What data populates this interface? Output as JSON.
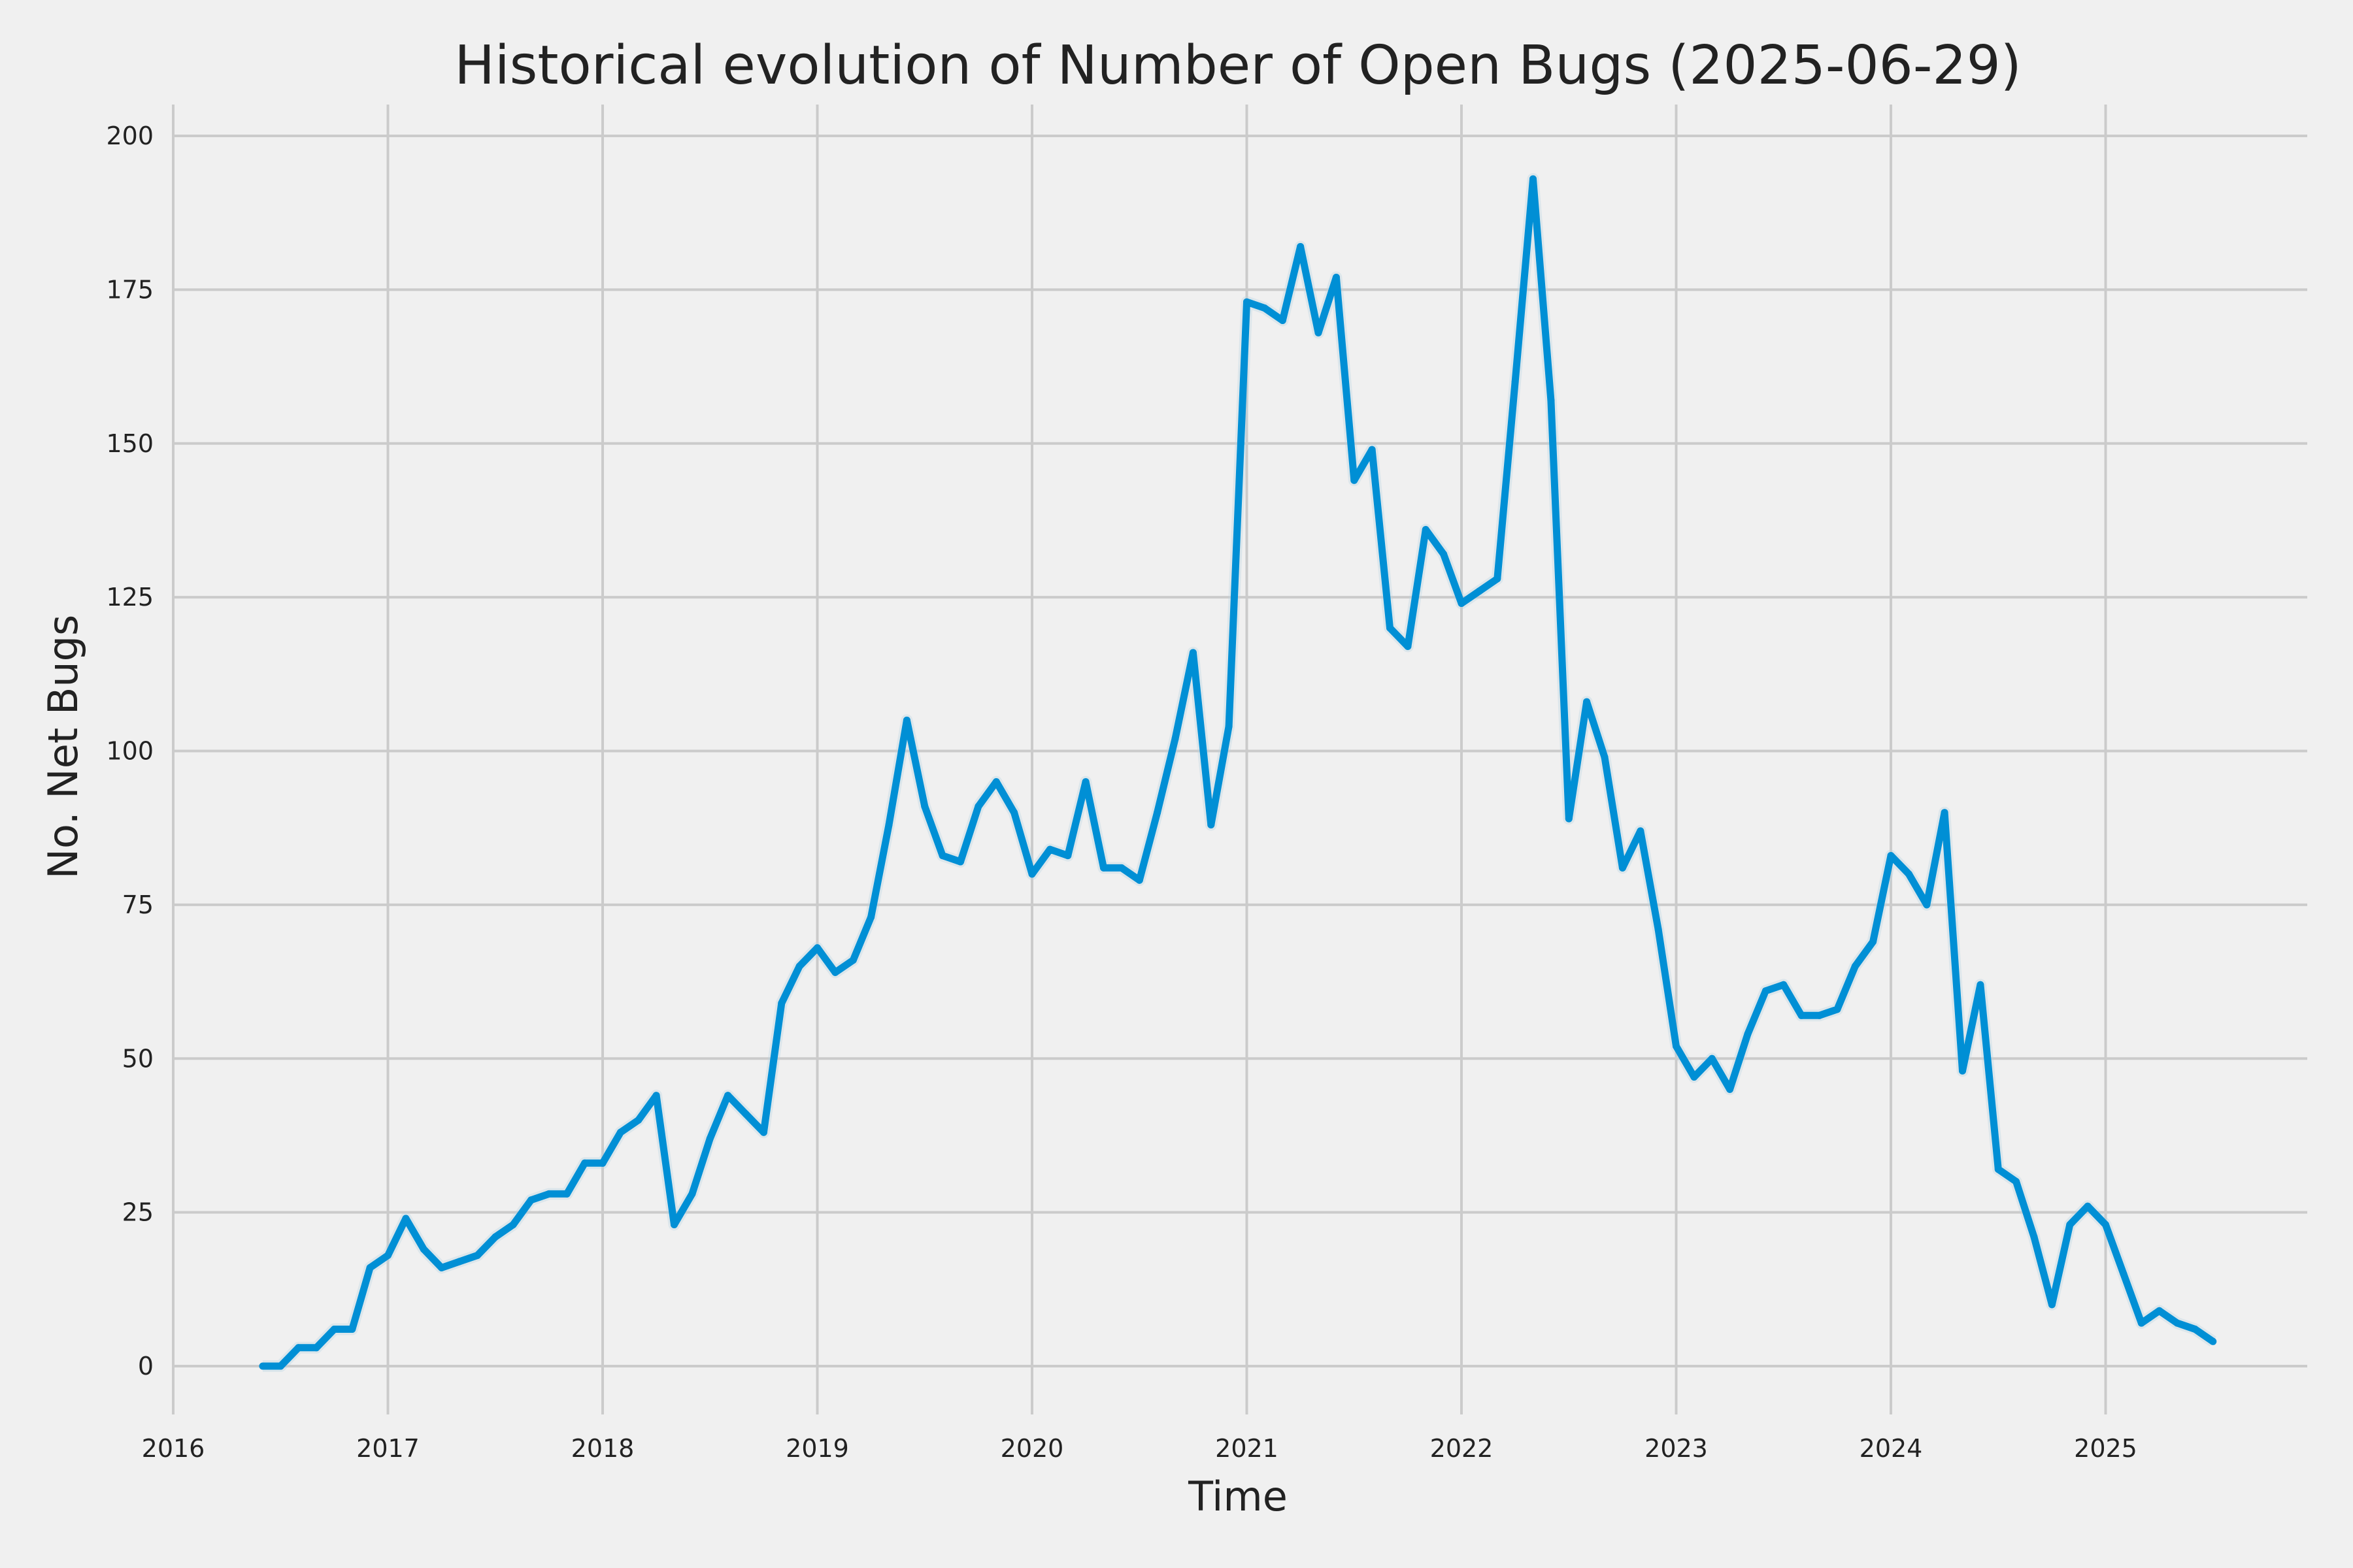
{
  "chart_data": {
    "type": "line",
    "title": "Historical evolution of Number of Open Bugs (2025-06-29)",
    "xlabel": "Time",
    "ylabel": "No. Net Bugs",
    "xlim": [
      "2016-01",
      "2025-12"
    ],
    "ylim": [
      -8,
      205
    ],
    "grid": true,
    "colors": {
      "background": "#f0f0f0",
      "grid": "#cbcbcb",
      "line": "#008fd5",
      "band": "#b8d4e3",
      "text": "#222222"
    },
    "x_ticks": [
      "2016",
      "2017",
      "2018",
      "2019",
      "2020",
      "2021",
      "2022",
      "2023",
      "2024",
      "2025"
    ],
    "y_ticks": [
      0,
      25,
      50,
      75,
      100,
      125,
      150,
      175,
      200
    ],
    "series": [
      {
        "x": [
          "2016-06",
          "2016-07",
          "2016-08",
          "2016-09",
          "2016-10",
          "2016-11",
          "2016-12",
          "2017-01",
          "2017-02",
          "2017-03",
          "2017-04",
          "2017-05",
          "2017-06",
          "2017-07",
          "2017-08",
          "2017-09",
          "2017-10",
          "2017-11",
          "2017-12",
          "2018-01",
          "2018-02",
          "2018-03",
          "2018-04",
          "2018-05",
          "2018-06",
          "2018-07",
          "2018-08",
          "2018-09",
          "2018-10",
          "2018-11",
          "2018-12",
          "2019-01",
          "2019-02",
          "2019-03",
          "2019-04",
          "2019-05",
          "2019-06",
          "2019-07",
          "2019-08",
          "2019-09",
          "2019-10",
          "2019-11",
          "2019-12",
          "2020-01",
          "2020-02",
          "2020-03",
          "2020-04",
          "2020-05",
          "2020-06",
          "2020-07",
          "2020-08",
          "2020-09",
          "2020-10",
          "2020-11",
          "2020-12",
          "2021-01",
          "2021-02",
          "2021-03",
          "2021-04",
          "2021-05",
          "2021-06",
          "2021-07",
          "2021-08",
          "2021-09",
          "2021-10",
          "2021-11",
          "2021-12",
          "2022-01",
          "2022-02",
          "2022-03",
          "2022-04",
          "2022-05",
          "2022-06",
          "2022-07",
          "2022-08",
          "2022-09",
          "2022-10",
          "2022-11",
          "2022-12",
          "2023-01",
          "2023-02",
          "2023-03",
          "2023-04",
          "2023-05",
          "2023-06",
          "2023-07",
          "2023-08",
          "2023-09",
          "2023-10",
          "2023-11",
          "2023-12",
          "2024-01",
          "2024-02",
          "2024-03",
          "2024-04",
          "2024-05",
          "2024-06",
          "2024-07",
          "2024-08",
          "2024-09",
          "2024-10",
          "2024-11",
          "2024-12",
          "2025-01",
          "2025-02",
          "2025-03",
          "2025-04",
          "2025-05",
          "2025-06",
          "2025-07"
        ],
        "values": [
          0,
          0,
          3,
          3,
          6,
          6,
          16,
          18,
          24,
          19,
          16,
          17,
          18,
          21,
          23,
          27,
          28,
          28,
          33,
          33,
          38,
          40,
          44,
          23,
          28,
          37,
          44,
          41,
          38,
          59,
          65,
          68,
          64,
          66,
          73,
          88,
          105,
          91,
          83,
          82,
          91,
          95,
          90,
          80,
          84,
          83,
          95,
          81,
          81,
          79,
          90,
          102,
          116,
          88,
          104,
          173,
          172,
          170,
          182,
          168,
          177,
          144,
          149,
          120,
          117,
          136,
          132,
          124,
          126,
          128,
          160,
          193,
          157,
          89,
          108,
          99,
          81,
          87,
          71,
          52,
          47,
          50,
          45,
          54,
          61,
          62,
          57,
          57,
          58,
          65,
          69,
          83,
          80,
          75,
          90,
          48,
          62,
          32,
          30,
          21,
          10,
          23,
          26,
          23,
          15,
          7,
          9,
          7,
          6,
          4
        ]
      }
    ]
  }
}
